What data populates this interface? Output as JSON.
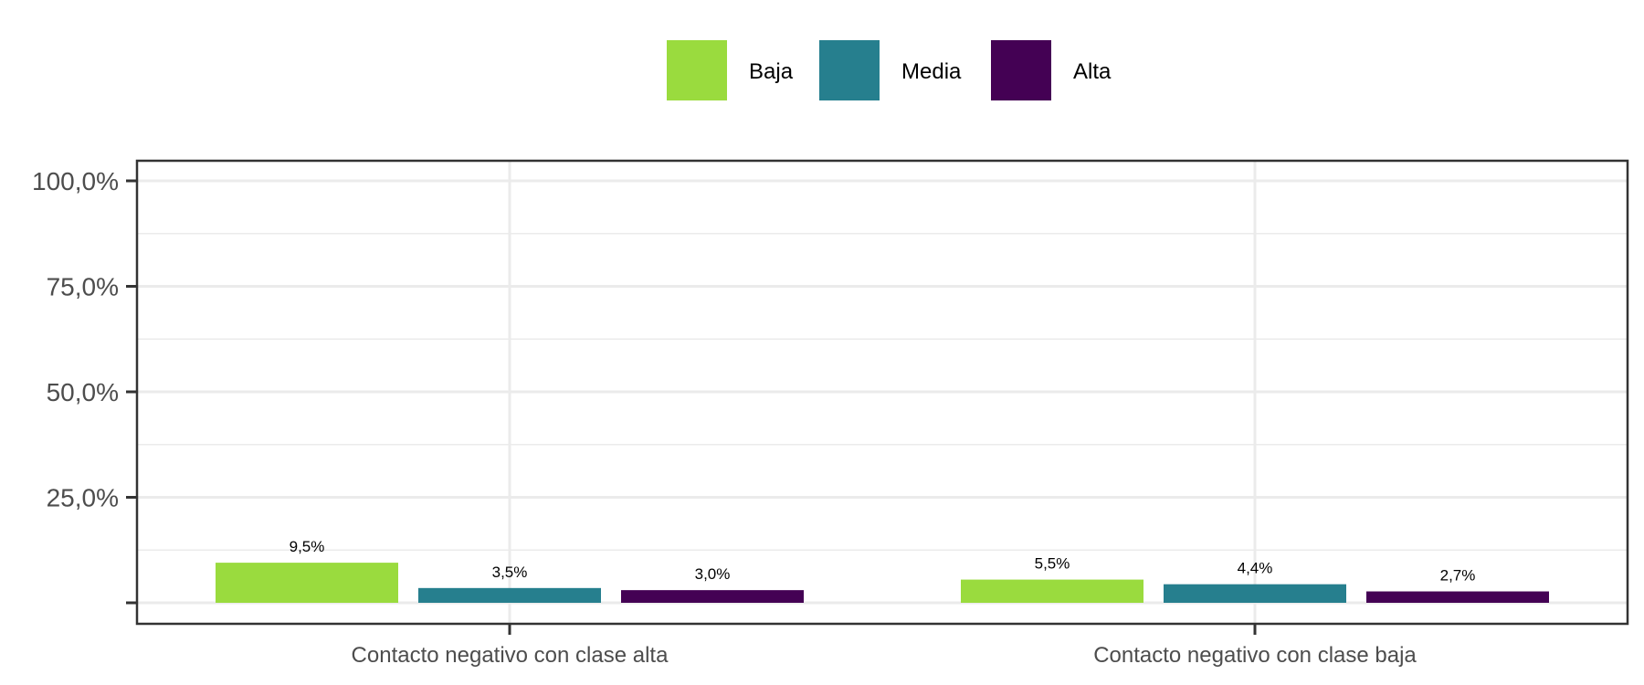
{
  "chart_data": {
    "type": "bar",
    "categories": [
      "Contacto negativo con clase alta",
      "Contacto negativo con clase baja"
    ],
    "series": [
      {
        "name": "Baja",
        "color": "#9ADB3E",
        "values": [
          9.5,
          5.5
        ],
        "labels": [
          "9,5%",
          "5,5%"
        ]
      },
      {
        "name": "Media",
        "color": "#267F8E",
        "values": [
          3.5,
          4.4
        ],
        "labels": [
          "3,5%",
          "4,4%"
        ]
      },
      {
        "name": "Alta",
        "color": "#440154",
        "values": [
          3.0,
          2.7
        ],
        "labels": [
          "3,0%",
          "2,7%"
        ]
      }
    ],
    "ylim": [
      0,
      100
    ],
    "yticks": [
      {
        "value": 0,
        "label": ""
      },
      {
        "value": 25,
        "label": "25,0%"
      },
      {
        "value": 50,
        "label": "50,0%"
      },
      {
        "value": 75,
        "label": "75,0%"
      },
      {
        "value": 100,
        "label": "100,0%"
      }
    ],
    "grid": true,
    "legend_position": "top",
    "xlabel": "",
    "ylabel": ""
  }
}
